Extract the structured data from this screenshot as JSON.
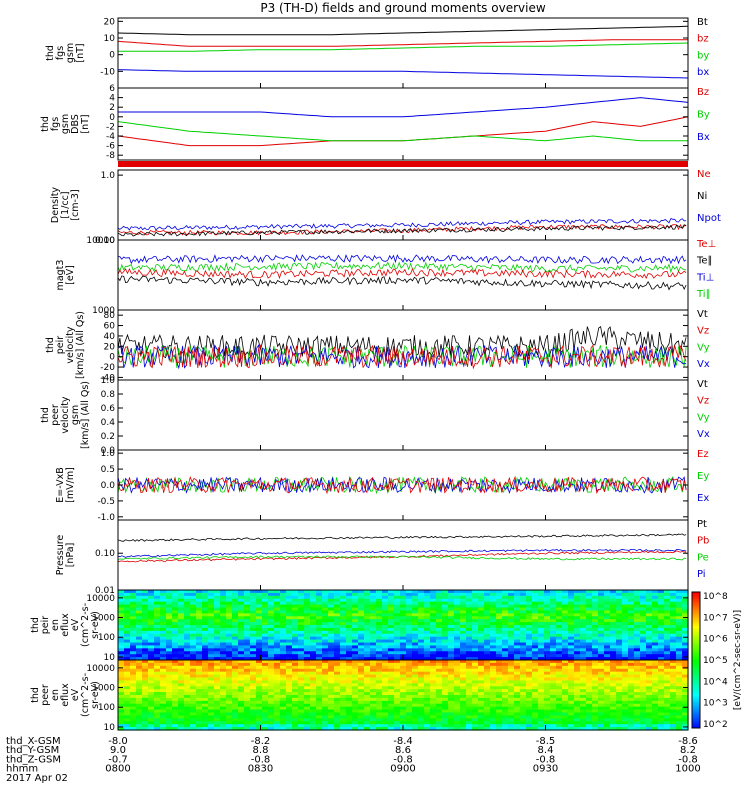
{
  "title": "P3 (TH-D) fields and ground moments overview",
  "colors": {
    "black": "#000000",
    "red": "#e00000",
    "green": "#00d000",
    "blue": "#0000e0"
  },
  "chart_data": [
    {
      "type": "line",
      "ylabel": [
        "thd",
        "fgs",
        "gsm",
        "[nT]"
      ],
      "ylim": [
        -20,
        22
      ],
      "yticks": [
        20,
        10,
        0,
        -10
      ],
      "legend": [
        {
          "name": "Bt",
          "color": "black"
        },
        {
          "name": "bz",
          "color": "red"
        },
        {
          "name": "by",
          "color": "green"
        },
        {
          "name": "bx",
          "color": "blue"
        }
      ],
      "series": [
        {
          "name": "Bt",
          "color": "black",
          "x": [
            0,
            15,
            30,
            45,
            60,
            75,
            90,
            105,
            120
          ],
          "y": [
            13,
            12,
            12,
            12,
            13,
            14,
            15,
            16,
            17
          ]
        },
        {
          "name": "bz",
          "color": "red",
          "x": [
            0,
            15,
            30,
            45,
            60,
            75,
            90,
            105,
            120
          ],
          "y": [
            8,
            5,
            5,
            5,
            6,
            7,
            8,
            9,
            9
          ]
        },
        {
          "name": "by",
          "color": "green",
          "x": [
            0,
            15,
            30,
            45,
            60,
            75,
            90,
            105,
            120
          ],
          "y": [
            2,
            2,
            3,
            3,
            4,
            5,
            5,
            6,
            7
          ]
        },
        {
          "name": "bx",
          "color": "blue",
          "x": [
            0,
            15,
            30,
            45,
            60,
            75,
            90,
            105,
            120
          ],
          "y": [
            -9,
            -10,
            -10,
            -10,
            -10,
            -11,
            -12,
            -13,
            -14
          ]
        }
      ]
    },
    {
      "type": "line",
      "ylabel": [
        "thd",
        "fgs",
        "gsm",
        "DBS",
        "[nT]"
      ],
      "ylim": [
        -9,
        6
      ],
      "yticks": [
        6,
        4,
        2,
        0,
        -2,
        -4,
        -6,
        -8
      ],
      "legend": [
        {
          "name": "Bz",
          "color": "red"
        },
        {
          "name": "By",
          "color": "green"
        },
        {
          "name": "Bx",
          "color": "blue"
        }
      ],
      "series": [
        {
          "name": "Bz",
          "color": "red",
          "x": [
            0,
            15,
            30,
            45,
            60,
            75,
            90,
            100,
            110,
            120
          ],
          "y": [
            -4,
            -6,
            -6,
            -5,
            -5,
            -4,
            -3,
            -1,
            -2,
            0
          ]
        },
        {
          "name": "By",
          "color": "green",
          "x": [
            0,
            15,
            30,
            45,
            60,
            75,
            90,
            100,
            110,
            120
          ],
          "y": [
            -1,
            -3,
            -4,
            -5,
            -5,
            -4,
            -5,
            -4,
            -5,
            -5
          ]
        },
        {
          "name": "Bx",
          "color": "blue",
          "x": [
            0,
            15,
            30,
            45,
            60,
            75,
            90,
            100,
            110,
            120
          ],
          "y": [
            1,
            1,
            1,
            0,
            0,
            1,
            2,
            3,
            4,
            3
          ]
        }
      ]
    },
    {
      "type": "line",
      "ylabel": [
        "Density",
        "[1/cc]",
        "[cm-3]"
      ],
      "scale": "log",
      "ylim": [
        0.1,
        1.2
      ],
      "yticks": [
        1.0,
        0.1
      ],
      "legend": [
        {
          "name": "Ne",
          "color": "red"
        },
        {
          "name": "Ni",
          "color": "black"
        },
        {
          "name": "Npot",
          "color": "blue"
        }
      ],
      "series": [
        {
          "name": "Npot",
          "color": "blue",
          "x": [
            0,
            30,
            60,
            90,
            120
          ],
          "y": [
            0.15,
            0.16,
            0.17,
            0.19,
            0.2
          ]
        },
        {
          "name": "Ne",
          "color": "red",
          "x": [
            0,
            30,
            60,
            90,
            120
          ],
          "y": [
            0.13,
            0.13,
            0.14,
            0.16,
            0.16
          ]
        },
        {
          "name": "Ni",
          "color": "black",
          "x": [
            0,
            30,
            60,
            90,
            120
          ],
          "y": [
            0.12,
            0.13,
            0.14,
            0.15,
            0.16
          ]
        }
      ]
    },
    {
      "type": "line",
      "ylabel": [
        "magt3",
        "[eV]"
      ],
      "scale": "log",
      "ylim": [
        1000,
        10000
      ],
      "yticks": [
        10000,
        1000
      ],
      "legend": [
        {
          "name": "Te⊥",
          "color": "red"
        },
        {
          "name": "Te∥",
          "color": "black"
        },
        {
          "name": "Ti⊥",
          "color": "blue"
        },
        {
          "name": "Ti∥",
          "color": "green"
        }
      ],
      "series": [
        {
          "name": "Ti⊥",
          "color": "blue",
          "x": [
            0,
            30,
            60,
            90,
            120
          ],
          "y": [
            5200,
            5500,
            5500,
            5200,
            5300
          ]
        },
        {
          "name": "Ti∥",
          "color": "green",
          "x": [
            0,
            30,
            60,
            90,
            120
          ],
          "y": [
            4000,
            4200,
            4300,
            3900,
            4000
          ]
        },
        {
          "name": "Te⊥",
          "color": "red",
          "x": [
            0,
            30,
            60,
            90,
            120
          ],
          "y": [
            3500,
            3200,
            3500,
            3300,
            3200
          ]
        },
        {
          "name": "Te∥",
          "color": "black",
          "x": [
            0,
            30,
            60,
            90,
            120
          ],
          "y": [
            2800,
            2500,
            2700,
            2400,
            2200
          ]
        }
      ]
    },
    {
      "type": "line",
      "ylabel": [
        "thd",
        "peir",
        "velocity",
        "[km/s] (All Qs)"
      ],
      "ylim": [
        -45,
        90
      ],
      "yticks": [
        80,
        60,
        40,
        20,
        0,
        -20,
        -40
      ],
      "legend": [
        {
          "name": "Vt",
          "color": "black"
        },
        {
          "name": "Vz",
          "color": "red"
        },
        {
          "name": "Vy",
          "color": "green"
        },
        {
          "name": "Vx",
          "color": "blue"
        }
      ],
      "series": [
        {
          "name": "Vt",
          "color": "black",
          "x": [
            0,
            30,
            60,
            90,
            100,
            110,
            120
          ],
          "y": [
            20,
            20,
            20,
            20,
            40,
            30,
            20
          ]
        },
        {
          "name": "Vy",
          "color": "green",
          "x": [
            0,
            30,
            60,
            90,
            120
          ],
          "y": [
            0,
            0,
            0,
            0,
            0
          ]
        },
        {
          "name": "Vx",
          "color": "blue",
          "x": [
            0,
            30,
            60,
            90,
            120
          ],
          "y": [
            0,
            0,
            0,
            0,
            0
          ]
        },
        {
          "name": "Vz",
          "color": "red",
          "x": [
            0,
            30,
            60,
            90,
            120
          ],
          "y": [
            0,
            0,
            0,
            0,
            0
          ]
        }
      ]
    },
    {
      "type": "line",
      "ylabel": [
        "thd",
        "peer",
        "velocity",
        "gsm",
        "[km/s] (All Qs)"
      ],
      "ylim": [
        0,
        1
      ],
      "yticks": [
        1.0,
        0.8,
        0.6,
        0.4,
        0.2,
        0.0
      ],
      "legend": [
        {
          "name": "Vt",
          "color": "black"
        },
        {
          "name": "Vz",
          "color": "red"
        },
        {
          "name": "Vy",
          "color": "green"
        },
        {
          "name": "Vx",
          "color": "blue"
        }
      ],
      "series": []
    },
    {
      "type": "line",
      "ylabel": [
        "E=-VxB",
        "[mV/m]"
      ],
      "ylim": [
        -1.1,
        1.1
      ],
      "yticks": [
        1.0,
        0.5,
        0.0,
        -0.5,
        -1.0
      ],
      "legend": [
        {
          "name": "Ez",
          "color": "red"
        },
        {
          "name": "Ey",
          "color": "green"
        },
        {
          "name": "Ex",
          "color": "blue"
        }
      ],
      "series": [
        {
          "name": "Ey",
          "color": "green",
          "x": [
            0,
            30,
            60,
            90,
            120
          ],
          "y": [
            0,
            0,
            0,
            0,
            0
          ]
        },
        {
          "name": "Ex",
          "color": "blue",
          "x": [
            0,
            30,
            60,
            90,
            120
          ],
          "y": [
            0,
            0,
            0,
            0,
            0
          ]
        },
        {
          "name": "Ez",
          "color": "red",
          "x": [
            0,
            30,
            60,
            90,
            120
          ],
          "y": [
            0,
            0,
            0,
            0,
            0
          ]
        }
      ]
    },
    {
      "type": "line",
      "ylabel": [
        "Pressure",
        "[nPa]"
      ],
      "scale": "log",
      "ylim": [
        0.01,
        0.8
      ],
      "yticks": [
        0.1,
        0.01
      ],
      "legend": [
        {
          "name": "Pt",
          "color": "black"
        },
        {
          "name": "Pb",
          "color": "red"
        },
        {
          "name": "Pe",
          "color": "green"
        },
        {
          "name": "Pi",
          "color": "blue"
        }
      ],
      "series": [
        {
          "name": "Pt",
          "color": "black",
          "x": [
            0,
            30,
            60,
            90,
            120
          ],
          "y": [
            0.22,
            0.25,
            0.27,
            0.29,
            0.32
          ]
        },
        {
          "name": "Pi",
          "color": "blue",
          "x": [
            0,
            30,
            60,
            90,
            120
          ],
          "y": [
            0.08,
            0.1,
            0.11,
            0.12,
            0.12
          ]
        },
        {
          "name": "Pb",
          "color": "red",
          "x": [
            0,
            30,
            60,
            90,
            120
          ],
          "y": [
            0.06,
            0.07,
            0.08,
            0.1,
            0.11
          ]
        },
        {
          "name": "Pe",
          "color": "green",
          "x": [
            0,
            30,
            60,
            90,
            120
          ],
          "y": [
            0.07,
            0.08,
            0.08,
            0.07,
            0.07
          ]
        }
      ]
    },
    {
      "type": "heatmap",
      "ylabel": [
        "thd",
        "peir",
        "en",
        "eflux",
        "eV",
        "(cm^2-s-",
        "sr-eV)"
      ],
      "scale": "log",
      "ylim": [
        7,
        25000
      ],
      "yticks": [
        10000,
        1000,
        100,
        10
      ]
    },
    {
      "type": "heatmap",
      "ylabel": [
        "thd",
        "peer",
        "en",
        "eflux",
        "eV",
        "(cm^2-s-",
        "sr-eV)"
      ],
      "scale": "log",
      "ylim": [
        7,
        25000
      ],
      "yticks": [
        10000,
        1000,
        100,
        10
      ]
    }
  ],
  "colorbar": {
    "ticks": [
      "10^8",
      "10^7",
      "10^6",
      "10^5",
      "10^4",
      "10^3",
      "10^2"
    ],
    "label": "[eV/(cm^2-sec-sr-eV)]"
  },
  "ephemeris": {
    "rows": [
      {
        "label": "thd_X-GSM",
        "values": [
          "-8.0",
          "-8.2",
          "-8.4",
          "-8.5",
          "-8.6"
        ]
      },
      {
        "label": "thd_Y-GSM",
        "values": [
          "9.0",
          "8.8",
          "8.6",
          "8.4",
          "8.2"
        ]
      },
      {
        "label": "thd_Z-GSM",
        "values": [
          "-0.7",
          "-0.8",
          "-0.8",
          "-0.8",
          "-0.8"
        ]
      },
      {
        "label": "hhmm",
        "values": [
          "0800",
          "0830",
          "0900",
          "0930",
          "1000"
        ]
      }
    ],
    "date": "2017 Apr 02"
  }
}
